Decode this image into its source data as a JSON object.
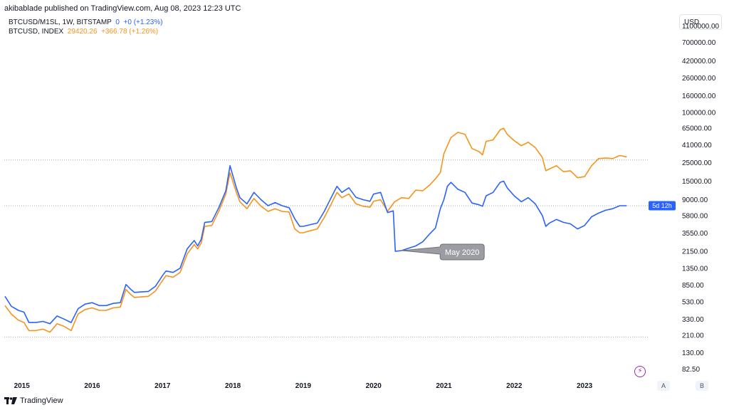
{
  "header": {
    "publisher": "akibablade published on TradingView.com, Aug 08, 2023 12:23 UTC"
  },
  "legend": [
    {
      "symbol": "BTCUSD/M1SL, 1W, BITSTAMP",
      "value": "0",
      "change": "+0 (+1.23%)",
      "color": "#2962ff"
    },
    {
      "symbol": "BTCUSD, INDEX",
      "value": "29420.26",
      "change": "+366.78 (+1.26%)",
      "color": "#f7931a"
    }
  ],
  "currency_button": "USD",
  "price_tag": "5d 12h",
  "annotation": "May 2020",
  "footer": {
    "brand": "TradingView"
  },
  "scale_buttons": {
    "a": "A",
    "b": "B"
  },
  "colors": {
    "blue": "#2962ff",
    "orange": "#f7931a",
    "grid": "#9ba3b4"
  },
  "chart_data": {
    "type": "line",
    "y_scale": "log",
    "ylim": [
      70,
      1300000
    ],
    "xlim": [
      2014.75,
      2023.9
    ],
    "y_ticks": [
      "1100000.00",
      "700000.00",
      "420000.00",
      "260000.00",
      "160000.00",
      "100000.00",
      "65000.00",
      "41000.00",
      "25000.00",
      "15000.00",
      "9000.00",
      "5800.00",
      "3550.00",
      "2150.00",
      "1350.00",
      "850.00",
      "530.00",
      "330.00",
      "210.00",
      "130.00",
      "82.50"
    ],
    "x_ticks": [
      "2015",
      "2016",
      "2017",
      "2018",
      "2019",
      "2020",
      "2021",
      "2022",
      "2023"
    ],
    "grid": false,
    "reference_lines": [
      27000,
      7600,
      200
    ],
    "series": [
      {
        "name": "BTCUSD, INDEX",
        "color": "#f7931a",
        "x": [
          2014.76,
          2014.85,
          2014.95,
          2015.03,
          2015.1,
          2015.2,
          2015.3,
          2015.4,
          2015.5,
          2015.6,
          2015.7,
          2015.8,
          2015.9,
          2016.0,
          2016.1,
          2016.2,
          2016.3,
          2016.4,
          2016.48,
          2016.55,
          2016.6,
          2016.7,
          2016.8,
          2016.9,
          2017.0,
          2017.05,
          2017.15,
          2017.25,
          2017.35,
          2017.45,
          2017.5,
          2017.55,
          2017.6,
          2017.7,
          2017.8,
          2017.9,
          2017.96,
          2018.05,
          2018.1,
          2018.2,
          2018.3,
          2018.4,
          2018.5,
          2018.6,
          2018.7,
          2018.8,
          2018.88,
          2018.95,
          2019.0,
          2019.1,
          2019.2,
          2019.3,
          2019.4,
          2019.48,
          2019.55,
          2019.65,
          2019.75,
          2019.85,
          2019.95,
          2020.0,
          2020.1,
          2020.2,
          2020.3,
          2020.4,
          2020.5,
          2020.6,
          2020.7,
          2020.8,
          2020.88,
          2020.95,
          2021.0,
          2021.05,
          2021.1,
          2021.2,
          2021.3,
          2021.4,
          2021.5,
          2021.55,
          2021.6,
          2021.7,
          2021.8,
          2021.85,
          2021.9,
          2022.0,
          2022.1,
          2022.2,
          2022.3,
          2022.4,
          2022.45,
          2022.5,
          2022.6,
          2022.7,
          2022.8,
          2022.9,
          2023.0,
          2023.1,
          2023.2,
          2023.3,
          2023.4,
          2023.5,
          2023.6
        ],
        "y": [
          480,
          380,
          320,
          300,
          240,
          240,
          250,
          230,
          290,
          270,
          240,
          380,
          430,
          450,
          420,
          420,
          450,
          460,
          750,
          650,
          600,
          610,
          620,
          720,
          960,
          1100,
          1050,
          1200,
          2000,
          2600,
          2300,
          2700,
          4300,
          4400,
          6500,
          10500,
          19000,
          11000,
          8500,
          7000,
          9300,
          7500,
          6500,
          7000,
          6500,
          6400,
          4000,
          3600,
          3600,
          3800,
          4000,
          5500,
          8000,
          11000,
          9500,
          10500,
          8000,
          7500,
          7300,
          8600,
          9000,
          6500,
          8500,
          9500,
          9300,
          11700,
          11500,
          13500,
          16000,
          19000,
          32000,
          40000,
          50000,
          58000,
          55000,
          37000,
          34000,
          31000,
          45000,
          47000,
          62000,
          65000,
          55000,
          46000,
          40000,
          44000,
          38000,
          29000,
          20000,
          21000,
          23000,
          19500,
          20000,
          16500,
          17000,
          23000,
          28000,
          28500,
          28000,
          30500,
          29420
        ]
      },
      {
        "name": "BTCUSD/M1SL, 1W, BITSTAMP",
        "color": "#2962ff",
        "x": [
          2014.76,
          2014.85,
          2014.95,
          2015.03,
          2015.1,
          2015.2,
          2015.3,
          2015.4,
          2015.5,
          2015.6,
          2015.7,
          2015.8,
          2015.9,
          2016.0,
          2016.1,
          2016.2,
          2016.3,
          2016.4,
          2016.48,
          2016.55,
          2016.6,
          2016.7,
          2016.8,
          2016.9,
          2017.0,
          2017.05,
          2017.15,
          2017.25,
          2017.35,
          2017.45,
          2017.5,
          2017.55,
          2017.6,
          2017.7,
          2017.8,
          2017.9,
          2017.96,
          2018.05,
          2018.1,
          2018.2,
          2018.3,
          2018.4,
          2018.5,
          2018.6,
          2018.7,
          2018.8,
          2018.88,
          2018.95,
          2019.0,
          2019.1,
          2019.2,
          2019.3,
          2019.4,
          2019.48,
          2019.55,
          2019.65,
          2019.75,
          2019.85,
          2019.95,
          2020.0,
          2020.1,
          2020.2,
          2020.28,
          2020.31,
          2020.4,
          2020.5,
          2020.6,
          2020.7,
          2020.8,
          2020.88,
          2020.95,
          2021.0,
          2021.05,
          2021.1,
          2021.2,
          2021.3,
          2021.4,
          2021.5,
          2021.55,
          2021.6,
          2021.7,
          2021.8,
          2021.85,
          2021.9,
          2022.0,
          2022.1,
          2022.2,
          2022.3,
          2022.4,
          2022.45,
          2022.5,
          2022.6,
          2022.7,
          2022.8,
          2022.9,
          2023.0,
          2023.1,
          2023.2,
          2023.3,
          2023.4,
          2023.5,
          2023.6
        ],
        "y": [
          620,
          470,
          420,
          400,
          300,
          300,
          310,
          290,
          360,
          330,
          300,
          440,
          500,
          520,
          480,
          480,
          510,
          520,
          860,
          750,
          690,
          700,
          710,
          820,
          1100,
          1250,
          1200,
          1350,
          2300,
          2900,
          2500,
          3000,
          4800,
          4900,
          7200,
          11500,
          23000,
          12500,
          9500,
          8000,
          11000,
          9000,
          7600,
          8300,
          7600,
          7200,
          5300,
          4300,
          4300,
          4500,
          4700,
          6500,
          9600,
          13000,
          11000,
          12500,
          9600,
          9000,
          8600,
          10500,
          11000,
          6300,
          6600,
          2150,
          2200,
          2350,
          2500,
          2800,
          3500,
          4100,
          7000,
          9000,
          13000,
          14500,
          12000,
          11000,
          8200,
          7800,
          7500,
          10000,
          11000,
          14500,
          15000,
          12500,
          10000,
          8500,
          9500,
          8000,
          5800,
          4300,
          4700,
          5200,
          4800,
          4600,
          4000,
          4400,
          5600,
          6200,
          6700,
          7000,
          7600,
          7600
        ]
      }
    ]
  }
}
